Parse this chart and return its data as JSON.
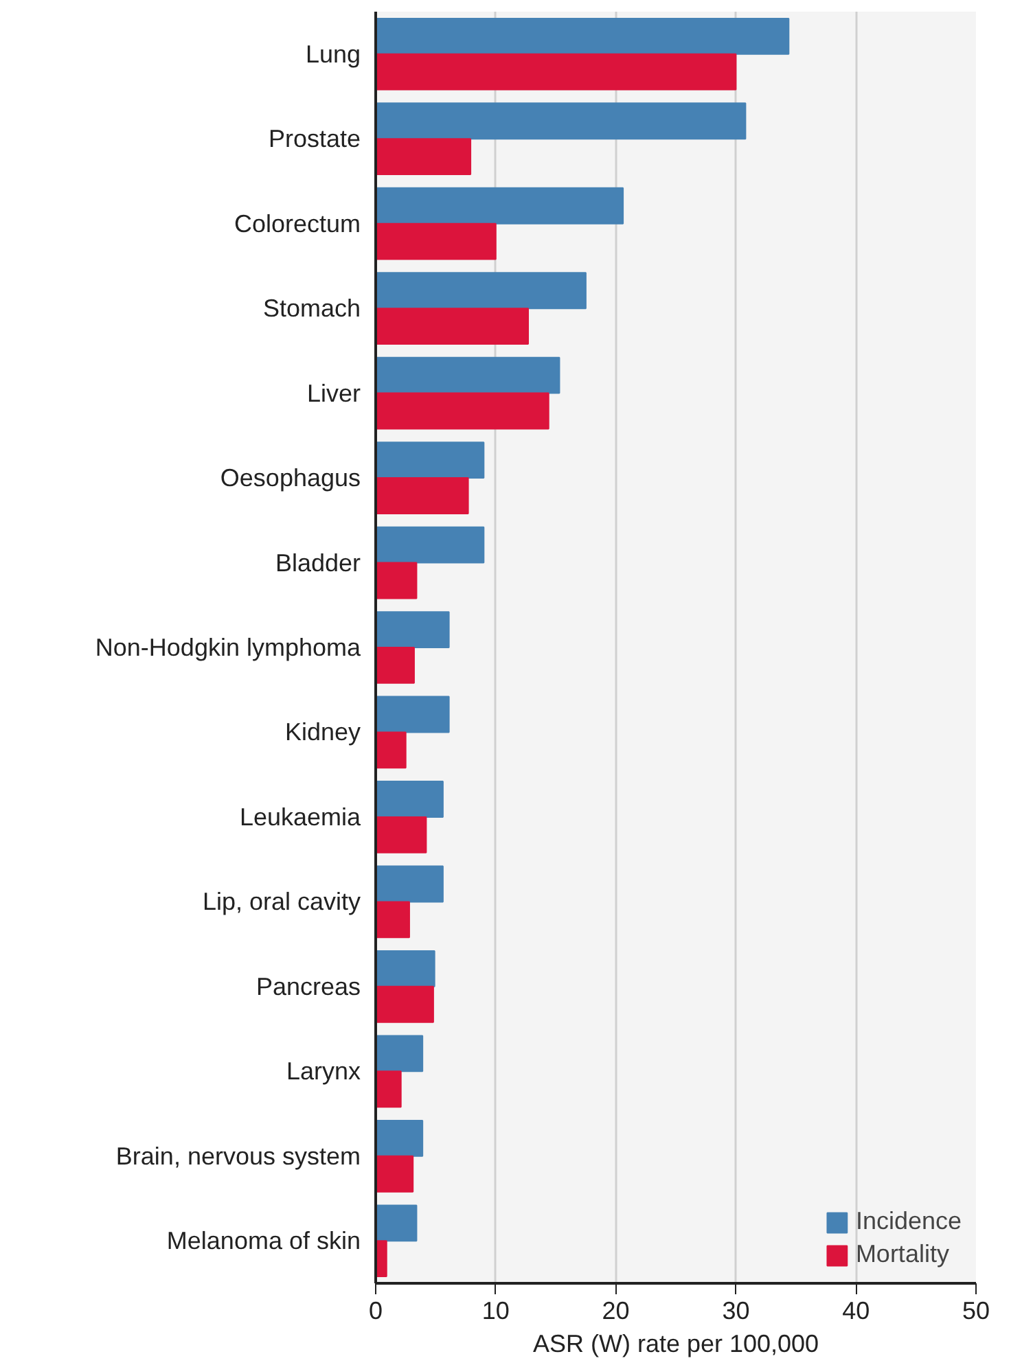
{
  "chart_data": {
    "type": "bar",
    "orientation": "horizontal",
    "xlabel": "ASR (W) rate per 100,000",
    "categories": [
      "Lung",
      "Prostate",
      "Colorectum",
      "Stomach",
      "Liver",
      "Oesophagus",
      "Bladder",
      "Non-Hodgkin lymphoma",
      "Kidney",
      "Leukaemia",
      "Lip, oral cavity",
      "Pancreas",
      "Larynx",
      "Brain, nervous system",
      "Melanoma of skin"
    ],
    "series": [
      {
        "name": "Incidence",
        "color": "#4682b4",
        "values": [
          34.4,
          30.8,
          20.6,
          17.5,
          15.3,
          9.0,
          9.0,
          6.1,
          6.1,
          5.6,
          5.6,
          4.9,
          3.9,
          3.9,
          3.4
        ]
      },
      {
        "name": "Mortality",
        "color": "#dc143c",
        "values": [
          30.0,
          7.9,
          10.0,
          12.7,
          14.4,
          7.7,
          3.4,
          3.2,
          2.5,
          4.2,
          2.8,
          4.8,
          2.1,
          3.1,
          0.9
        ]
      }
    ],
    "xlim": [
      0,
      50
    ],
    "xticks": [
      0,
      10,
      20,
      30,
      40,
      50
    ],
    "grid": "x",
    "legend": "bottom right"
  }
}
